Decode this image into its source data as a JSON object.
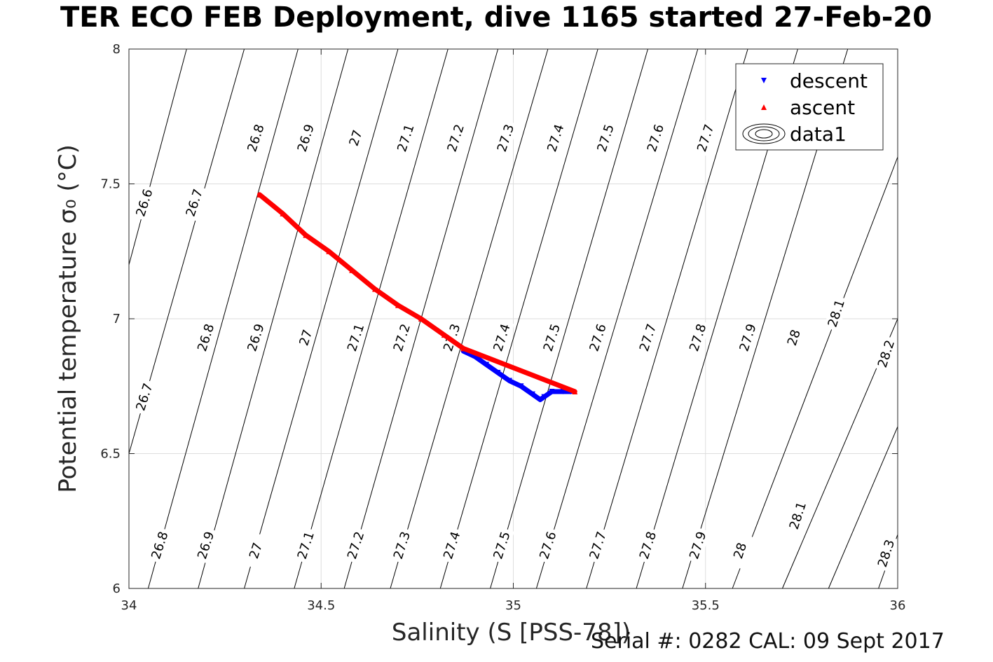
{
  "figure": {
    "title": "TER ECO FEB Deployment, dive 1165 started 27-Feb-20",
    "footer": "Serial #: 0282  CAL: 09 Sept 2017"
  },
  "chart_data": {
    "type": "scatter",
    "title": "TER ECO FEB Deployment, dive 1165 started 27-Feb-20",
    "xlabel": "Salinity (S [PSS-78])",
    "ylabel": "Potential temperature σ₀ (°C)",
    "xlim": [
      34,
      36
    ],
    "ylim": [
      6,
      8
    ],
    "x_ticks": [
      "34",
      "34.5",
      "35",
      "35.5",
      "36"
    ],
    "y_ticks": [
      "6",
      "6.5",
      "7",
      "7.5",
      "8"
    ],
    "grid": true,
    "legend": {
      "placement": "top-right",
      "entries": [
        "descent",
        "ascent",
        "data1"
      ]
    },
    "series": [
      {
        "name": "descent",
        "marker": "triangle-down",
        "color": "#0000ff",
        "points": [
          [
            34.87,
            6.88
          ],
          [
            34.9,
            6.86
          ],
          [
            34.93,
            6.83
          ],
          [
            34.96,
            6.8
          ],
          [
            34.99,
            6.77
          ],
          [
            35.02,
            6.75
          ],
          [
            35.05,
            6.72
          ],
          [
            35.07,
            6.7
          ],
          [
            35.08,
            6.71
          ],
          [
            35.1,
            6.73
          ],
          [
            35.13,
            6.73
          ],
          [
            35.15,
            6.73
          ]
        ]
      },
      {
        "name": "ascent",
        "marker": "triangle-up",
        "color": "#ff0000",
        "points": [
          [
            34.34,
            7.46
          ],
          [
            34.4,
            7.39
          ],
          [
            34.46,
            7.31
          ],
          [
            34.52,
            7.25
          ],
          [
            34.58,
            7.18
          ],
          [
            34.64,
            7.11
          ],
          [
            34.7,
            7.05
          ],
          [
            34.76,
            7.0
          ],
          [
            34.82,
            6.94
          ],
          [
            34.87,
            6.89
          ],
          [
            35.16,
            6.73
          ]
        ]
      }
    ],
    "contours": {
      "color": "#000000",
      "series_name": "data1",
      "levels": [
        {
          "value": "26.6",
          "pts": [
            [
              34.0,
              7.2
            ],
            [
              34.15,
              8.0
            ]
          ]
        },
        {
          "value": "26.7",
          "pts": [
            [
              34.0,
              6.5
            ],
            [
              34.3,
              8.0
            ]
          ]
        },
        {
          "value": "26.8",
          "pts": [
            [
              34.05,
              6.0
            ],
            [
              34.44,
              8.0
            ]
          ]
        },
        {
          "value": "26.9",
          "pts": [
            [
              34.18,
              6.0
            ],
            [
              34.57,
              8.0
            ]
          ]
        },
        {
          "value": "27",
          "pts": [
            [
              34.3,
              6.0
            ],
            [
              34.7,
              8.0
            ]
          ]
        },
        {
          "value": "27.1",
          "pts": [
            [
              34.43,
              6.0
            ],
            [
              34.83,
              8.0
            ]
          ]
        },
        {
          "value": "27.2",
          "pts": [
            [
              34.56,
              6.0
            ],
            [
              34.96,
              8.0
            ]
          ]
        },
        {
          "value": "27.3",
          "pts": [
            [
              34.68,
              6.0
            ],
            [
              35.09,
              8.0
            ]
          ]
        },
        {
          "value": "27.4",
          "pts": [
            [
              34.81,
              6.0
            ],
            [
              35.22,
              8.0
            ]
          ]
        },
        {
          "value": "27.5",
          "pts": [
            [
              34.94,
              6.0
            ],
            [
              35.35,
              8.0
            ]
          ]
        },
        {
          "value": "27.6",
          "pts": [
            [
              35.06,
              6.0
            ],
            [
              35.48,
              8.0
            ]
          ]
        },
        {
          "value": "27.7",
          "pts": [
            [
              35.19,
              6.0
            ],
            [
              35.61,
              8.0
            ]
          ]
        },
        {
          "value": "27.8",
          "pts": [
            [
              35.32,
              6.0
            ],
            [
              35.74,
              8.0
            ]
          ]
        },
        {
          "value": "27.9",
          "pts": [
            [
              35.44,
              6.0
            ],
            [
              35.87,
              8.0
            ]
          ]
        },
        {
          "value": "28",
          "pts": [
            [
              35.57,
              6.0
            ],
            [
              36.0,
              7.6
            ]
          ]
        },
        {
          "value": "28.1",
          "pts": [
            [
              35.7,
              6.0
            ],
            [
              36.0,
              7.0
            ]
          ]
        },
        {
          "value": "28.2",
          "pts": [
            [
              35.82,
              6.0
            ],
            [
              36.0,
              6.6
            ]
          ]
        },
        {
          "value": "28.3",
          "pts": [
            [
              35.95,
              6.0
            ],
            [
              36.0,
              6.2
            ]
          ]
        }
      ],
      "labels": [
        {
          "text": "26.6",
          "x": 34.04,
          "y": 7.43
        },
        {
          "text": "26.7",
          "x": 34.17,
          "y": 7.43
        },
        {
          "text": "26.8",
          "x": 34.33,
          "y": 7.67
        },
        {
          "text": "26.9",
          "x": 34.46,
          "y": 7.67
        },
        {
          "text": "27",
          "x": 34.59,
          "y": 7.67
        },
        {
          "text": "27.1",
          "x": 34.72,
          "y": 7.67
        },
        {
          "text": "27.2",
          "x": 34.85,
          "y": 7.67
        },
        {
          "text": "27.3",
          "x": 34.98,
          "y": 7.67
        },
        {
          "text": "27.4",
          "x": 35.11,
          "y": 7.67
        },
        {
          "text": "27.5",
          "x": 35.24,
          "y": 7.67
        },
        {
          "text": "27.6",
          "x": 35.37,
          "y": 7.67
        },
        {
          "text": "27.7",
          "x": 35.5,
          "y": 7.67
        },
        {
          "text": "26.7",
          "x": 34.04,
          "y": 6.71
        },
        {
          "text": "26.8",
          "x": 34.2,
          "y": 6.93
        },
        {
          "text": "26.9",
          "x": 34.33,
          "y": 6.93
        },
        {
          "text": "27",
          "x": 34.46,
          "y": 6.93
        },
        {
          "text": "27.1",
          "x": 34.59,
          "y": 6.93
        },
        {
          "text": "27.2",
          "x": 34.71,
          "y": 6.93
        },
        {
          "text": "27.3",
          "x": 34.84,
          "y": 6.93
        },
        {
          "text": "27.4",
          "x": 34.97,
          "y": 6.93
        },
        {
          "text": "27.5",
          "x": 35.1,
          "y": 6.93
        },
        {
          "text": "27.6",
          "x": 35.22,
          "y": 6.93
        },
        {
          "text": "27.7",
          "x": 35.35,
          "y": 6.93
        },
        {
          "text": "27.8",
          "x": 35.48,
          "y": 6.93
        },
        {
          "text": "27.9",
          "x": 35.61,
          "y": 6.93
        },
        {
          "text": "28",
          "x": 35.73,
          "y": 6.93
        },
        {
          "text": "28.1",
          "x": 35.84,
          "y": 7.02
        },
        {
          "text": "28.2",
          "x": 35.97,
          "y": 6.87
        },
        {
          "text": "26.8",
          "x": 34.08,
          "y": 6.16
        },
        {
          "text": "26.9",
          "x": 34.2,
          "y": 6.16
        },
        {
          "text": "27",
          "x": 34.33,
          "y": 6.14
        },
        {
          "text": "27.1",
          "x": 34.46,
          "y": 6.16
        },
        {
          "text": "27.2",
          "x": 34.59,
          "y": 6.16
        },
        {
          "text": "27.3",
          "x": 34.71,
          "y": 6.16
        },
        {
          "text": "27.4",
          "x": 34.84,
          "y": 6.16
        },
        {
          "text": "27.5",
          "x": 34.97,
          "y": 6.16
        },
        {
          "text": "27.6",
          "x": 35.09,
          "y": 6.16
        },
        {
          "text": "27.7",
          "x": 35.22,
          "y": 6.16
        },
        {
          "text": "27.8",
          "x": 35.35,
          "y": 6.16
        },
        {
          "text": "27.9",
          "x": 35.48,
          "y": 6.16
        },
        {
          "text": "28",
          "x": 35.59,
          "y": 6.14
        },
        {
          "text": "28.1",
          "x": 35.74,
          "y": 6.27
        },
        {
          "text": "28.3",
          "x": 35.97,
          "y": 6.13
        }
      ]
    }
  }
}
